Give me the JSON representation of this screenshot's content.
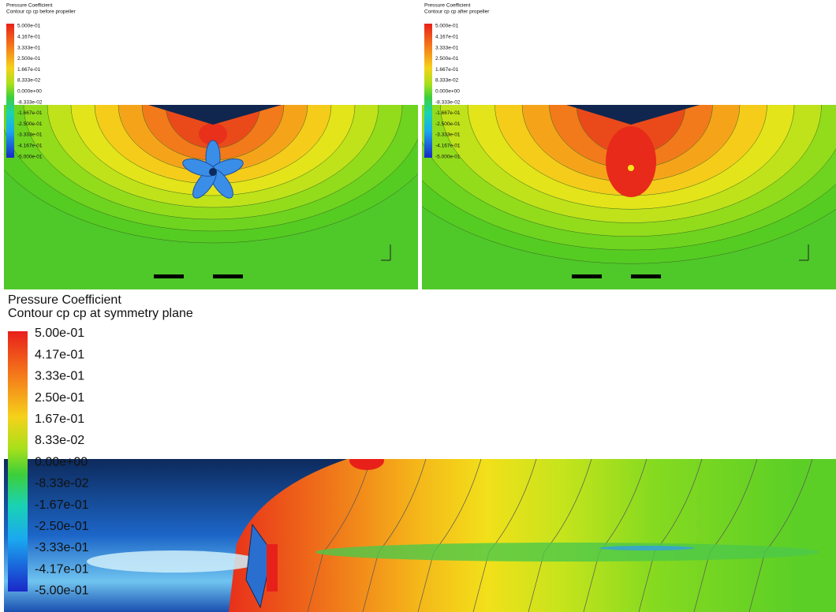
{
  "panels": [
    {
      "title": "Pressure Coefficient",
      "subtitle": "Contour cp cp before propeller",
      "legend": [
        "5.000e-01",
        "4.167e-01",
        "3.333e-01",
        "2.500e-01",
        "1.667e-01",
        "8.333e-02",
        "0.000e+00",
        "-8.333e-02",
        "-1.667e-01",
        "-2.500e-01",
        "-3.333e-01",
        "-4.167e-01",
        "-5.000e-01"
      ]
    },
    {
      "title": "Pressure Coefficient",
      "subtitle": "Contour cp cp after propeller",
      "legend": [
        "5.000e-01",
        "4.167e-01",
        "3.333e-01",
        "2.500e-01",
        "1.667e-01",
        "8.333e-02",
        "0.000e+00",
        "-8.333e-02",
        "-1.667e-01",
        "-2.500e-01",
        "-3.333e-01",
        "-4.167e-01",
        "-5.000e-01"
      ]
    },
    {
      "title": "Pressure Coefficient",
      "subtitle": "Contour cp cp at symmetry plane",
      "legend": [
        "5.00e-01",
        "4.17e-01",
        "3.33e-01",
        "2.50e-01",
        "1.67e-01",
        "8.33e-02",
        "0.00e+00",
        "-8.33e-02",
        "-1.67e-01",
        "-2.50e-01",
        "-3.33e-01",
        "-4.17e-01",
        "-5.00e-01"
      ]
    }
  ]
}
